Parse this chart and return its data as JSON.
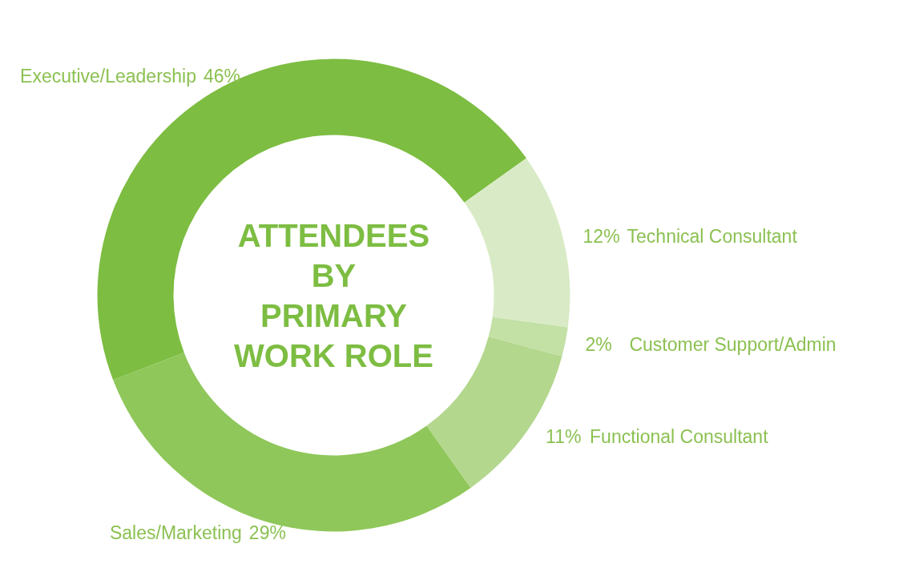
{
  "chart_data": {
    "type": "donut",
    "title": "ATTENDEES BY PRIMARY WORK ROLE",
    "categories": [
      "Executive/Leadership",
      "Technical Consultant",
      "Customer Support/Admin",
      "Functional Consultant",
      "Sales/Marketing"
    ],
    "values": [
      46,
      12,
      2,
      11,
      29
    ],
    "colors": [
      "#7dbd42",
      "#d9ebc6",
      "#c3e0a5",
      "#b3d78d",
      "#8fc75a"
    ],
    "value_labels": [
      "46%",
      "12%",
      "2%",
      "11%",
      "29%"
    ]
  }
}
